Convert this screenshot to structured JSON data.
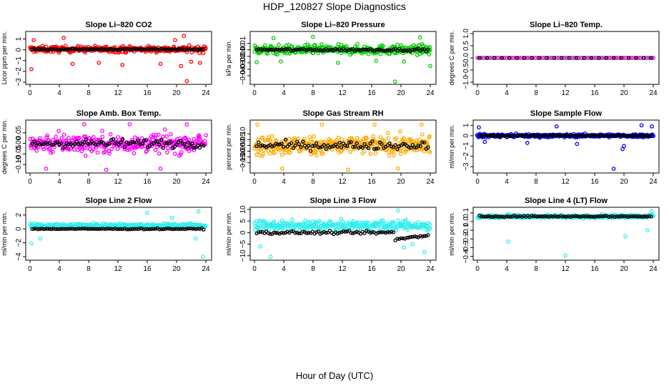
{
  "figure": {
    "title": "HDP_120827  Slope Diagnostics",
    "xlabel": "Hour of Day (UTC)",
    "x_ticks": [
      "0",
      "4",
      "8",
      "12",
      "16",
      "20",
      "24"
    ],
    "colors": {
      "mean": "#000000"
    }
  },
  "chart_data": [
    {
      "type": "scatter",
      "title": "Slope Li–820 CO2",
      "ylabel": "Licor ppm per min.",
      "color": "#ff0000",
      "xlim": [
        0,
        24
      ],
      "ylim": [
        -3,
        1.5
      ],
      "yticks": [
        -3,
        -2,
        -1,
        0,
        1
      ],
      "ytick_labels": [
        "−3",
        "−2",
        "−1",
        "0",
        "1"
      ],
      "center": 0.05,
      "spread": 0.55,
      "mean_spread": 0.12,
      "n": 320,
      "outliers": [
        [
          0.2,
          -1.8
        ],
        [
          0.5,
          0.9
        ],
        [
          4.6,
          1.1
        ],
        [
          5.8,
          -1.3
        ],
        [
          9.4,
          -1.2
        ],
        [
          12.6,
          -1.4
        ],
        [
          17.8,
          -1.3
        ],
        [
          19.8,
          0.9
        ],
        [
          20.6,
          -1.5
        ],
        [
          21.0,
          1.3
        ],
        [
          21.4,
          -2.9
        ],
        [
          22.0,
          -1.1
        ],
        [
          23.2,
          -1.2
        ]
      ]
    },
    {
      "type": "scatter",
      "title": "Slope Li–820 Pressure",
      "ylabel": "kPa per min.",
      "color": "#00cc00",
      "xlim": [
        0,
        24
      ],
      "ylim": [
        -0.05,
        0.025
      ],
      "yticks": [
        -0.04,
        -0.03,
        -0.02,
        -0.01,
        0,
        0.01
      ],
      "ytick_labels": [
        "−0.04",
        "−0.03",
        "−0.02",
        "−0.01",
        "0.00",
        "0.01"
      ],
      "center": 0.0,
      "spread": 0.014,
      "mean_spread": 0.004,
      "n": 320,
      "outliers": [
        [
          0.3,
          -0.019
        ],
        [
          2.6,
          0.018
        ],
        [
          3.6,
          -0.018
        ],
        [
          8.0,
          0.02
        ],
        [
          11.4,
          -0.02
        ],
        [
          16.6,
          -0.017
        ],
        [
          19.2,
          -0.049
        ],
        [
          20.4,
          -0.018
        ],
        [
          22.6,
          0.019
        ],
        [
          24.0,
          -0.025
        ]
      ]
    },
    {
      "type": "scatter",
      "title": "Slope Li–820 Temp.",
      "ylabel": "degrees C per min.",
      "color": "#cc33cc",
      "xlim": [
        0,
        24
      ],
      "ylim": [
        -1,
        1
      ],
      "yticks": [
        -1,
        -0.5,
        0,
        0.5,
        1
      ],
      "ytick_labels": [
        "−1.0",
        "−0.5",
        "0.0",
        "0.5",
        "1.0"
      ],
      "center": 0.0,
      "spread": 0.0,
      "mean_spread": 0.0,
      "n": 120,
      "outliers": []
    },
    {
      "type": "scatter",
      "title": "Slope Amb. Box Temp.",
      "ylabel": "degrees C per min.",
      "color": "#ff00ff",
      "xlim": [
        0,
        24
      ],
      "ylim": [
        -0.13,
        0.1
      ],
      "yticks": [
        -0.1,
        -0.05,
        0,
        0.05
      ],
      "ytick_labels": [
        "−0.10",
        "−0.05",
        "0.00",
        "0.05"
      ],
      "center": 0.0,
      "spread": 0.09,
      "mean_spread": 0.04,
      "n": 320,
      "outliers": [
        [
          2.2,
          -0.12
        ],
        [
          7.4,
          0.09
        ],
        [
          10.4,
          -0.125
        ],
        [
          13.6,
          0.09
        ],
        [
          17.8,
          -0.12
        ],
        [
          21.4,
          0.09
        ]
      ]
    },
    {
      "type": "scatter",
      "title": "Slope Gas Stream RH",
      "ylabel": "percent per min.",
      "color": "#ffaa00",
      "xlim": [
        0,
        24
      ],
      "ylim": [
        -0.22,
        0.2
      ],
      "yticks": [
        -0.15,
        -0.1,
        -0.05,
        0,
        0.05,
        0.1
      ],
      "ytick_labels": [
        "−0.15",
        "−0.10",
        "−0.05",
        "0.00",
        "0.05",
        "0.10"
      ],
      "center": 0.0,
      "spread": 0.16,
      "mean_spread": 0.07,
      "n": 320,
      "outliers": [
        [
          0.4,
          0.18
        ],
        [
          3.8,
          -0.2
        ],
        [
          9.2,
          0.18
        ],
        [
          12.8,
          -0.21
        ],
        [
          16.4,
          0.18
        ],
        [
          19.6,
          -0.2
        ],
        [
          22.8,
          0.18
        ]
      ]
    },
    {
      "type": "scatter",
      "title": "Slope Sample Flow",
      "ylabel": "ml/min per min.",
      "color": "#0000ff",
      "xlim": [
        0,
        24
      ],
      "ylim": [
        -3.4,
        1.3
      ],
      "yticks": [
        -3,
        -2,
        -1,
        0,
        1
      ],
      "ytick_labels": [
        "−3",
        "−2",
        "−1",
        "0",
        "1"
      ],
      "center": 0.0,
      "spread": 0.3,
      "mean_spread": 0.1,
      "n": 320,
      "outliers": [
        [
          0.2,
          0.8
        ],
        [
          1.0,
          -0.6
        ],
        [
          6.8,
          -0.7
        ],
        [
          10.8,
          0.9
        ],
        [
          13.6,
          -0.8
        ],
        [
          18.6,
          -3.2
        ],
        [
          19.8,
          -1.3
        ],
        [
          20.0,
          -1.0
        ],
        [
          22.4,
          1.0
        ],
        [
          23.8,
          0.9
        ]
      ]
    },
    {
      "type": "scatter",
      "title": "Slope Line 2 Flow",
      "ylabel": "ml/min per min.",
      "color": "#33eeee",
      "xlim": [
        0,
        24
      ],
      "ylim": [
        -4.2,
        2.8
      ],
      "yticks": [
        -4,
        -2,
        0,
        2
      ],
      "ytick_labels": [
        "−4",
        "−2",
        "0",
        "2"
      ],
      "center": 0.5,
      "spread": 0.55,
      "mean_spread": 0.15,
      "n": 280,
      "outliers": [
        [
          0.2,
          -2.1
        ],
        [
          1.4,
          -1.4
        ],
        [
          16.0,
          2.3
        ],
        [
          19.4,
          1.6
        ],
        [
          22.6,
          -1.4
        ],
        [
          23.0,
          2.5
        ],
        [
          23.6,
          -4.0
        ]
      ]
    },
    {
      "type": "scatter",
      "title": "Slope Line 3 Flow",
      "ylabel": "ml/min per min.",
      "color": "#33eeee",
      "xlim": [
        0,
        24
      ],
      "ylim": [
        -11,
        10
      ],
      "yticks": [
        -10,
        -5,
        0,
        5,
        10
      ],
      "ytick_labels": [
        "−10",
        "−5",
        "0",
        "5",
        "10"
      ],
      "center": 3.0,
      "spread": 4.0,
      "mean_spread": 1.2,
      "n": 300,
      "outliers": [
        [
          0.8,
          -6.0
        ],
        [
          2.2,
          -10.5
        ],
        [
          19.6,
          9.5
        ],
        [
          20.4,
          -6.5
        ],
        [
          21.6,
          -5.0
        ],
        [
          23.2,
          -8.5
        ]
      ]
    },
    {
      "type": "scatter",
      "title": "Slope Line 4 (LT) Flow",
      "ylabel": "ml/min per min.",
      "color": "#33eeee",
      "xlim": [
        0,
        24
      ],
      "ylim": [
        -0.42,
        0.14
      ],
      "yticks": [
        -0.4,
        -0.3,
        -0.2,
        -0.1,
        0,
        0.1
      ],
      "ytick_labels": [
        "−0.4",
        "−0.3",
        "−0.2",
        "−0.1",
        "0.0",
        "0.1"
      ],
      "center": 0.06,
      "spread": 0.04,
      "mean_spread": 0.015,
      "n": 300,
      "outliers": [
        [
          4.2,
          -0.23
        ],
        [
          12.0,
          -0.39
        ],
        [
          20.2,
          -0.17
        ],
        [
          23.2,
          -0.1
        ],
        [
          23.8,
          0.12
        ]
      ]
    }
  ]
}
